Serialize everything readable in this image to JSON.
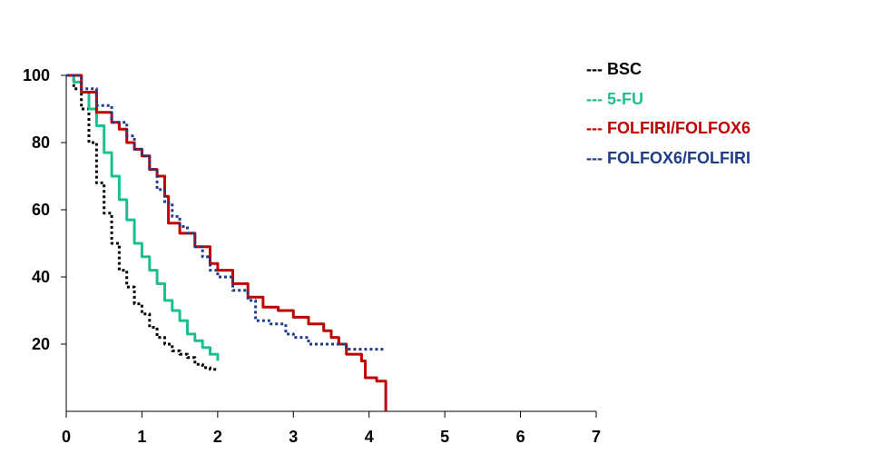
{
  "chart_data": {
    "type": "line",
    "title": "",
    "xlabel": "",
    "ylabel": "",
    "xlim": [
      0,
      7
    ],
    "ylim": [
      0,
      100
    ],
    "x_ticks": [
      "0",
      "1",
      "2",
      "3",
      "4",
      "5",
      "6",
      "7"
    ],
    "y_ticks": [
      "20",
      "40",
      "60",
      "80",
      "100"
    ],
    "grid": false,
    "legend_position": "top-right",
    "series": [
      {
        "name": "BSC",
        "color": "#000000",
        "line_style": "dotted",
        "points": [
          [
            0,
            100
          ],
          [
            0.1,
            96
          ],
          [
            0.2,
            90
          ],
          [
            0.3,
            80
          ],
          [
            0.4,
            68
          ],
          [
            0.5,
            59
          ],
          [
            0.6,
            50
          ],
          [
            0.7,
            42
          ],
          [
            0.8,
            37
          ],
          [
            0.9,
            32
          ],
          [
            1.0,
            29
          ],
          [
            1.1,
            25
          ],
          [
            1.2,
            22
          ],
          [
            1.3,
            20
          ],
          [
            1.4,
            18
          ],
          [
            1.5,
            17
          ],
          [
            1.6,
            16
          ],
          [
            1.7,
            14
          ],
          [
            1.8,
            13
          ],
          [
            1.9,
            12.5
          ],
          [
            2.0,
            12.5
          ]
        ]
      },
      {
        "name": "5-FU",
        "color": "#1dbf91",
        "line_style": "solid",
        "points": [
          [
            0,
            100
          ],
          [
            0.1,
            98
          ],
          [
            0.2,
            95
          ],
          [
            0.3,
            90
          ],
          [
            0.4,
            85
          ],
          [
            0.5,
            77
          ],
          [
            0.6,
            70
          ],
          [
            0.7,
            63
          ],
          [
            0.8,
            57
          ],
          [
            0.9,
            50
          ],
          [
            1.0,
            46
          ],
          [
            1.1,
            42
          ],
          [
            1.2,
            38
          ],
          [
            1.3,
            33
          ],
          [
            1.4,
            30
          ],
          [
            1.5,
            27
          ],
          [
            1.6,
            23
          ],
          [
            1.7,
            21
          ],
          [
            1.8,
            19
          ],
          [
            1.9,
            17
          ],
          [
            2.0,
            15
          ]
        ]
      },
      {
        "name": "FOLFIRI/FOLFOX6",
        "color": "#c00000",
        "line_style": "solid",
        "points": [
          [
            0,
            100
          ],
          [
            0.2,
            95
          ],
          [
            0.4,
            89
          ],
          [
            0.6,
            86
          ],
          [
            0.7,
            84
          ],
          [
            0.8,
            80
          ],
          [
            0.9,
            78
          ],
          [
            1.0,
            76
          ],
          [
            1.1,
            72
          ],
          [
            1.2,
            70
          ],
          [
            1.3,
            64
          ],
          [
            1.35,
            56
          ],
          [
            1.5,
            53
          ],
          [
            1.7,
            49
          ],
          [
            1.9,
            44
          ],
          [
            2.0,
            42
          ],
          [
            2.2,
            38
          ],
          [
            2.4,
            34
          ],
          [
            2.6,
            31
          ],
          [
            2.8,
            30
          ],
          [
            3.0,
            28
          ],
          [
            3.2,
            26
          ],
          [
            3.4,
            24
          ],
          [
            3.5,
            22
          ],
          [
            3.6,
            20
          ],
          [
            3.7,
            17
          ],
          [
            3.9,
            15
          ],
          [
            3.95,
            10
          ],
          [
            4.1,
            9
          ],
          [
            4.2,
            9
          ],
          [
            4.22,
            0
          ]
        ]
      },
      {
        "name": "FOLFOX6/FOLFIRI",
        "color": "#1f3c88",
        "line_style": "dotted",
        "points": [
          [
            0,
            100
          ],
          [
            0.2,
            96
          ],
          [
            0.4,
            91
          ],
          [
            0.6,
            86
          ],
          [
            0.8,
            82
          ],
          [
            0.9,
            78
          ],
          [
            1.0,
            76
          ],
          [
            1.1,
            72
          ],
          [
            1.2,
            66
          ],
          [
            1.3,
            62
          ],
          [
            1.4,
            58
          ],
          [
            1.5,
            55
          ],
          [
            1.6,
            53
          ],
          [
            1.7,
            49
          ],
          [
            1.8,
            46
          ],
          [
            1.9,
            42
          ],
          [
            2.0,
            40
          ],
          [
            2.2,
            36
          ],
          [
            2.4,
            33
          ],
          [
            2.5,
            27
          ],
          [
            2.7,
            26
          ],
          [
            2.9,
            23
          ],
          [
            3.0,
            22
          ],
          [
            3.2,
            20
          ],
          [
            3.5,
            20
          ],
          [
            3.7,
            18.5
          ],
          [
            4.2,
            18.5
          ]
        ]
      }
    ]
  }
}
